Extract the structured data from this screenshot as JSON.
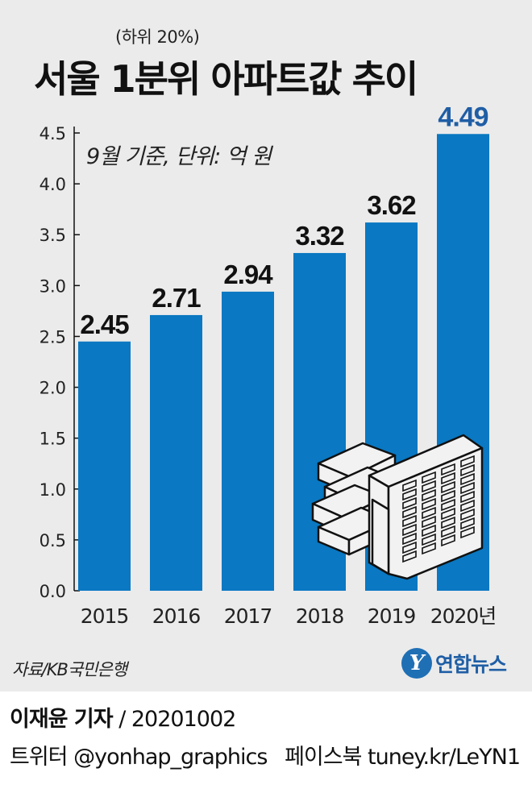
{
  "header": {
    "subtitle": "(하위 20%)",
    "title": "서울 1분위 아파트값 추이",
    "unit_note": "9월 기준, 단위: 억 원"
  },
  "chart_data": {
    "type": "bar",
    "categories": [
      "2015",
      "2016",
      "2017",
      "2018",
      "2019",
      "2020년"
    ],
    "values": [
      2.45,
      2.71,
      2.94,
      3.32,
      3.62,
      4.49
    ],
    "value_labels": [
      "2.45",
      "2.71",
      "2.94",
      "3.32",
      "3.62",
      "4.49"
    ],
    "ylim": [
      0,
      4.5
    ],
    "yticks": [
      "0.0",
      "0.5",
      "1.0",
      "1.5",
      "2.0",
      "2.5",
      "3.0",
      "3.5",
      "4.0",
      "4.5"
    ],
    "grid": false,
    "bar_color": "#0a78c2",
    "highlight_label_color": "#1f5ea5",
    "label_color": "#111111"
  },
  "footer": {
    "source": "자료/KB국민은행",
    "logo_mark": "Y",
    "logo_text": "연합뉴스",
    "reporter": "이재윤 기자",
    "date": "/ 20201002",
    "twitter": "트위터 @yonhap_graphics",
    "facebook": "페이스북 tuney.kr/LeYN1"
  }
}
